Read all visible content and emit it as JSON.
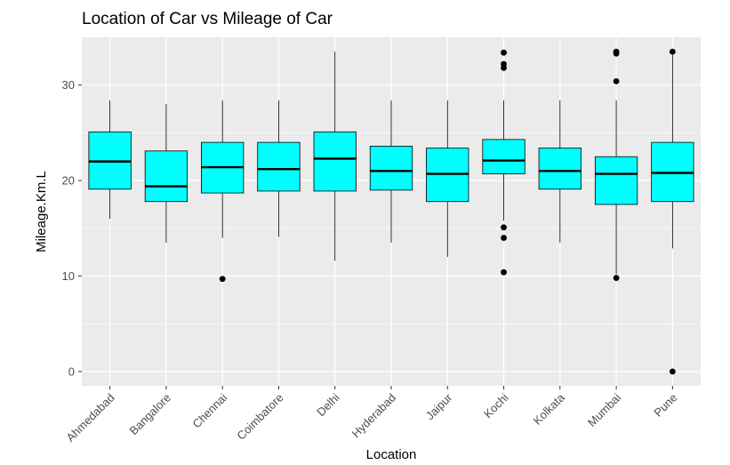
{
  "chart_data": {
    "type": "boxplot",
    "title": "Location of Car vs Mileage of Car",
    "xlabel": "Location",
    "ylabel": "Mileage.Km.L",
    "ylim": [
      -1.5,
      35
    ],
    "yticks": [
      0,
      10,
      20,
      30
    ],
    "grid": true,
    "legend": "none",
    "box_fill": "#00FFFF",
    "panel_background": "#EBEBEB",
    "categories": [
      "Ahmedabad",
      "Bangalore",
      "Chennai",
      "Coimbatore",
      "Delhi",
      "Hyderabad",
      "Jaipur",
      "Kochi",
      "Kolkata",
      "Mumbai",
      "Pune"
    ],
    "boxes": [
      {
        "category": "Ahmedabad",
        "whisker_low": 16.0,
        "q1": 19.1,
        "median": 22.0,
        "q3": 25.1,
        "whisker_high": 28.4,
        "outliers": []
      },
      {
        "category": "Bangalore",
        "whisker_low": 13.5,
        "q1": 17.8,
        "median": 19.4,
        "q3": 23.1,
        "whisker_high": 28.0,
        "outliers": []
      },
      {
        "category": "Chennai",
        "whisker_low": 14.0,
        "q1": 18.7,
        "median": 21.4,
        "q3": 24.0,
        "whisker_high": 28.4,
        "outliers": [
          9.7
        ]
      },
      {
        "category": "Coimbatore",
        "whisker_low": 14.1,
        "q1": 18.9,
        "median": 21.2,
        "q3": 24.0,
        "whisker_high": 28.4,
        "outliers": []
      },
      {
        "category": "Delhi",
        "whisker_low": 11.6,
        "q1": 18.9,
        "median": 22.3,
        "q3": 25.1,
        "whisker_high": 33.5,
        "outliers": []
      },
      {
        "category": "Hyderabad",
        "whisker_low": 13.5,
        "q1": 19.0,
        "median": 21.0,
        "q3": 23.6,
        "whisker_high": 28.4,
        "outliers": []
      },
      {
        "category": "Jaipur",
        "whisker_low": 12.0,
        "q1": 17.8,
        "median": 20.7,
        "q3": 23.4,
        "whisker_high": 28.4,
        "outliers": []
      },
      {
        "category": "Kochi",
        "whisker_low": 15.8,
        "q1": 20.7,
        "median": 22.1,
        "q3": 24.3,
        "whisker_high": 28.4,
        "outliers": [
          33.4,
          32.2,
          31.8,
          15.1,
          14.0,
          10.4
        ]
      },
      {
        "category": "Kolkata",
        "whisker_low": 13.5,
        "q1": 19.1,
        "median": 21.0,
        "q3": 23.4,
        "whisker_high": 28.4,
        "outliers": []
      },
      {
        "category": "Mumbai",
        "whisker_low": 10.2,
        "q1": 17.5,
        "median": 20.7,
        "q3": 22.5,
        "whisker_high": 28.4,
        "outliers": [
          33.5,
          33.3,
          30.4,
          9.8
        ]
      },
      {
        "category": "Pune",
        "whisker_low": 12.9,
        "q1": 17.8,
        "median": 20.8,
        "q3": 24.0,
        "whisker_high": 33.5,
        "outliers": [
          33.5,
          0.0
        ]
      }
    ]
  }
}
